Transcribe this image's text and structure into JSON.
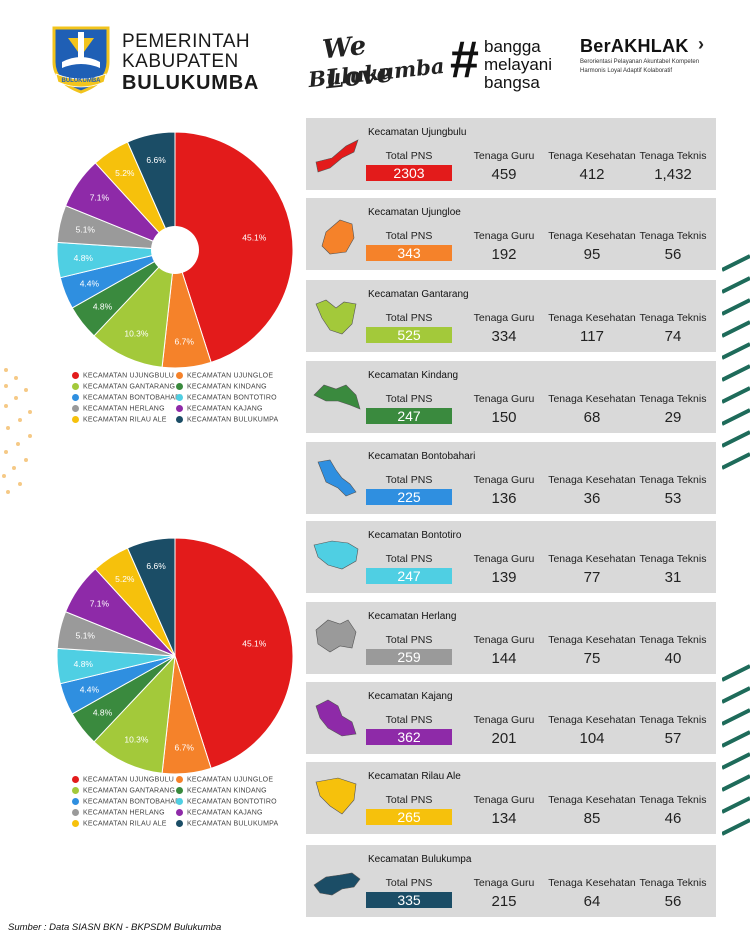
{
  "header": {
    "org_line1": "PEMERINTAH",
    "org_line2": "KABUPATEN",
    "org_line3": "BULUKUMBA",
    "logo_ribbon": "BULUKUMBA",
    "welove_line1": "We Love",
    "welove_line2": "Bulukumba",
    "bangga_line1": "bangga",
    "bangga_line2": "melayani",
    "bangga_line3": "bangsa",
    "berakhlak_title": "BerAKHLAK",
    "berakhlak_sub1": "Berorientasi Pelayanan Akuntabel Kompeten",
    "berakhlak_sub2": "Harmonis Loyal Adaptif Kolaboratif"
  },
  "legend": [
    {
      "label": "KECAMATAN UJUNGBULU",
      "color": "#e31b1b"
    },
    {
      "label": "KECAMATAN UJUNGLOE",
      "color": "#f5822a"
    },
    {
      "label": "KECAMATAN GANTARANG",
      "color": "#a3c93a"
    },
    {
      "label": "KECAMATAN KINDANG",
      "color": "#3a8a3e"
    },
    {
      "label": "KECAMATAN BONTOBAHARI",
      "color": "#2f8fe0"
    },
    {
      "label": "KECAMATAN BONTOTIRO",
      "color": "#4fcfe3"
    },
    {
      "label": "KECAMATAN HERLANG",
      "color": "#9a9a9a"
    },
    {
      "label": "KECAMATAN KAJANG",
      "color": "#8e2aa8"
    },
    {
      "label": "KECAMATAN RILAU ALE",
      "color": "#f6c10c"
    },
    {
      "label": "KECAMATAN BULUKUMPA",
      "color": "#1b4d66"
    }
  ],
  "chart_data": [
    {
      "type": "pie",
      "categories": [
        "KECAMATAN UJUNGBULU",
        "KECAMATAN UJUNGLOE",
        "KECAMATAN GANTARANG",
        "KECAMATAN KINDANG",
        "KECAMATAN BONTOBAHARI",
        "KECAMATAN BONTOTIRO",
        "KECAMATAN HERLANG",
        "KECAMATAN KAJANG",
        "KECAMATAN RILAU ALE",
        "KECAMATAN BULUKUMPA"
      ],
      "values": [
        45.1,
        6.7,
        10.3,
        4.8,
        4.4,
        4.8,
        5.1,
        7.1,
        5.2,
        6.6
      ],
      "labels": [
        "45.1%",
        "6.7%",
        "10.3%",
        "4.8%",
        "4.4%",
        "4.8%",
        "5.1%",
        "7.1%",
        "5.2%",
        "6.6%"
      ],
      "legend_position": "bottom"
    },
    {
      "type": "pie",
      "categories": [
        "KECAMATAN UJUNGBULU",
        "KECAMATAN UJUNGLOE",
        "KECAMATAN GANTARANG",
        "KECAMATAN KINDANG",
        "KECAMATAN BONTOBAHARI",
        "KECAMATAN BONTOTIRO",
        "KECAMATAN HERLANG",
        "KECAMATAN KAJANG",
        "KECAMATAN RILAU ALE",
        "KECAMATAN BULUKUMPA"
      ],
      "values": [
        45.1,
        6.7,
        10.3,
        4.8,
        4.4,
        4.8,
        5.1,
        7.1,
        5.2,
        6.6
      ],
      "labels": [
        "45.1%",
        "6.7%",
        "10.3%",
        "4.8%",
        "4.4%",
        "4.8%",
        "5.1%",
        "7.1%",
        "5.2%",
        "6.6%"
      ],
      "legend_position": "bottom"
    }
  ],
  "column_labels": {
    "total": "Total PNS",
    "guru": "Tenaga Guru",
    "kesehatan": "Tenaga Kesehatan",
    "teknis": "Tenaga Teknis"
  },
  "cards": [
    {
      "name": "Kecamatan Ujungbulu",
      "total": "2303",
      "guru": "459",
      "kesehatan": "412",
      "teknis": "1,432",
      "color": "#e31b1b"
    },
    {
      "name": "Kecamatan Ujungloe",
      "total": "343",
      "guru": "192",
      "kesehatan": "95",
      "teknis": "56",
      "color": "#f5822a"
    },
    {
      "name": "Kecamatan Gantarang",
      "total": "525",
      "guru": "334",
      "kesehatan": "117",
      "teknis": "74",
      "color": "#a3c93a"
    },
    {
      "name": "Kecamatan Kindang",
      "total": "247",
      "guru": "150",
      "kesehatan": "68",
      "teknis": "29",
      "color": "#3a8a3e"
    },
    {
      "name": "Kecamatan Bontobahari",
      "total": "225",
      "guru": "136",
      "kesehatan": "36",
      "teknis": "53",
      "color": "#2f8fe0"
    },
    {
      "name": "Kecamatan Bontotiro",
      "total": "247",
      "guru": "139",
      "kesehatan": "77",
      "teknis": "31",
      "color": "#4fcfe3"
    },
    {
      "name": "Kecamatan Herlang",
      "total": "259",
      "guru": "144",
      "kesehatan": "75",
      "teknis": "40",
      "color": "#9a9a9a"
    },
    {
      "name": "Kecamatan Kajang",
      "total": "362",
      "guru": "201",
      "kesehatan": "104",
      "teknis": "57",
      "color": "#8e2aa8"
    },
    {
      "name": "Kecamatan Rilau Ale",
      "total": "265",
      "guru": "134",
      "kesehatan": "85",
      "teknis": "46",
      "color": "#f6c10c"
    },
    {
      "name": "Kecamatan Bulukumpa",
      "total": "335",
      "guru": "215",
      "kesehatan": "64",
      "teknis": "56",
      "color": "#1b4d66"
    }
  ],
  "source": "Sumber : Data SIASN BKN - BKPSDM Bulukumba"
}
